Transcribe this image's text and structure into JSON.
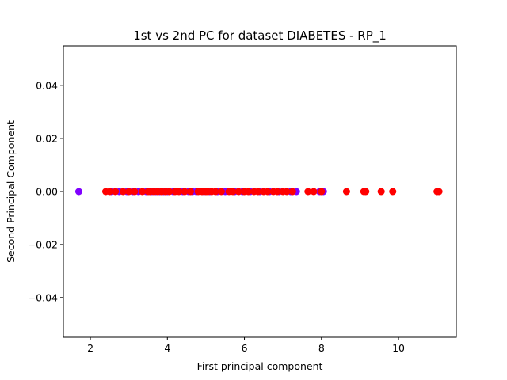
{
  "chart_data": {
    "type": "scatter",
    "title": "1st vs 2nd PC for dataset DIABETES - RP_1",
    "xlabel": "First principal component",
    "ylabel": "Second Principal Component",
    "xlim": [
      1.3,
      11.5
    ],
    "ylim": [
      -0.055,
      0.055
    ],
    "xticks": [
      2,
      4,
      6,
      8,
      10
    ],
    "xtick_labels": [
      "2",
      "4",
      "6",
      "8",
      "10"
    ],
    "yticks": [
      -0.04,
      -0.02,
      0.0,
      0.02,
      0.04
    ],
    "ytick_labels": [
      "−0.04",
      "−0.02",
      "0.00",
      "0.02",
      "0.04"
    ],
    "grid": false,
    "colors": {
      "class_0": "#8000ff",
      "class_1": "#ff0000"
    },
    "series": [
      {
        "color": "#8000ff",
        "x": [
          1.7,
          2.55,
          2.75,
          2.95,
          3.1,
          3.25,
          3.45,
          3.6,
          3.7,
          3.8,
          3.9,
          4.0,
          4.15,
          4.4,
          4.55,
          4.65,
          4.75,
          4.95,
          5.1,
          5.3,
          5.5,
          5.75,
          5.95,
          6.15,
          6.4,
          6.65,
          6.9,
          7.2,
          7.35,
          7.95,
          8.05
        ],
        "y": [
          0,
          0,
          0,
          0,
          0,
          0,
          0,
          0,
          0,
          0,
          0,
          0,
          0,
          0,
          0,
          0,
          0,
          0,
          0,
          0,
          0,
          0,
          0,
          0,
          0,
          0,
          0,
          0,
          0,
          0,
          0
        ]
      },
      {
        "color": "#ff0000",
        "x": [
          2.4,
          2.5,
          2.65,
          2.85,
          3.0,
          3.15,
          3.35,
          3.5,
          3.55,
          3.65,
          3.75,
          3.85,
          3.95,
          4.05,
          4.2,
          4.3,
          4.45,
          4.6,
          4.8,
          4.9,
          5.0,
          5.05,
          5.15,
          5.25,
          5.4,
          5.6,
          5.7,
          5.85,
          6.0,
          6.1,
          6.25,
          6.35,
          6.5,
          6.6,
          6.75,
          6.85,
          7.0,
          7.1,
          7.25,
          7.65,
          7.8,
          8.0,
          8.65,
          9.1,
          9.15,
          9.55,
          9.85,
          11.0,
          11.05
        ],
        "y": [
          0,
          0,
          0,
          0,
          0,
          0,
          0,
          0,
          0,
          0,
          0,
          0,
          0,
          0,
          0,
          0,
          0,
          0,
          0,
          0,
          0,
          0,
          0,
          0,
          0,
          0,
          0,
          0,
          0,
          0,
          0,
          0,
          0,
          0,
          0,
          0,
          0,
          0,
          0,
          0,
          0,
          0,
          0,
          0,
          0,
          0,
          0,
          0,
          0
        ]
      }
    ]
  }
}
